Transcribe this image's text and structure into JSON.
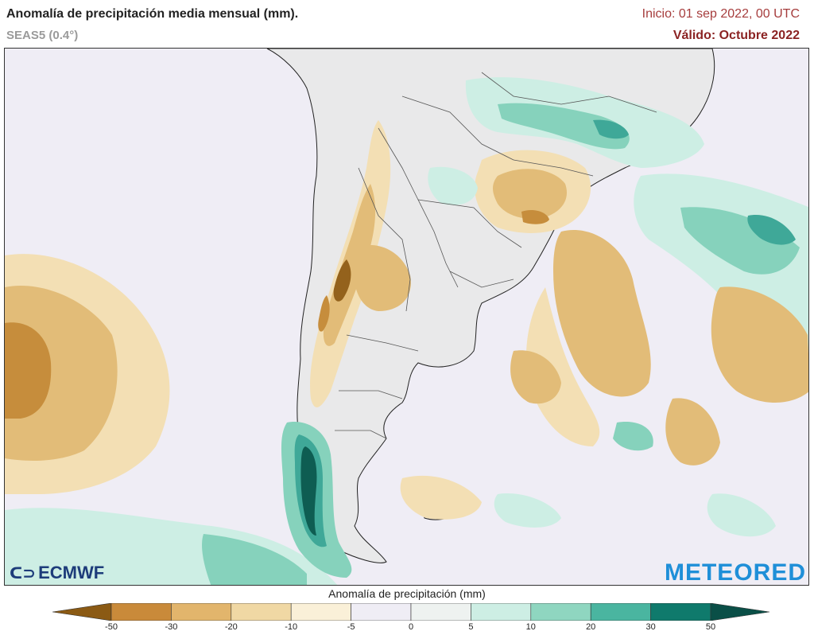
{
  "header": {
    "title": "Anomalía de precipitación media mensual (mm).",
    "subtitle": "SEAS5 (0.4°)",
    "init": "Inicio: 01 sep 2022, 00 UTC",
    "valid": "Válido: Octubre 2022"
  },
  "logos": {
    "left": "ECMWF",
    "right": "METEORED"
  },
  "colorbar": {
    "title": "Anomalía de precipitación (mm)",
    "ticks": [
      "-50",
      "-30",
      "-20",
      "-10",
      "-5",
      "0",
      "5",
      "10",
      "20",
      "30",
      "50"
    ],
    "colors": [
      "#8b5a14",
      "#c98a3a",
      "#e2b56c",
      "#f0d8a4",
      "#faf0d8",
      "#efedf5",
      "#eef2f0",
      "#cdeee4",
      "#8fd6c0",
      "#4ab5a0",
      "#0f7a6c",
      "#0a4f47"
    ]
  },
  "colors": {
    "background": "#efedf5",
    "land": "#e9e9ea",
    "dry_light": "#f3dfb4",
    "dry_mid": "#e2bc78",
    "dry_strong": "#c68d3c",
    "dry_extreme": "#94621c",
    "wet_light": "#cdeee4",
    "wet_mid": "#86d2bc",
    "wet_strong": "#3fa898",
    "wet_extreme": "#0e5d52"
  }
}
